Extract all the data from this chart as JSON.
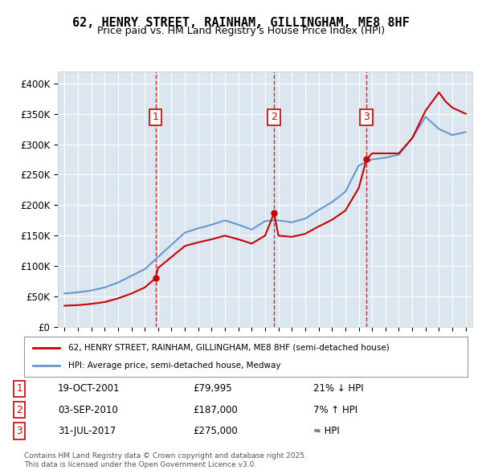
{
  "title": "62, HENRY STREET, RAINHAM, GILLINGHAM, ME8 8HF",
  "subtitle": "Price paid vs. HM Land Registry's House Price Index (HPI)",
  "bg_color": "#dce6f0",
  "plot_bg": "#dce6f0",
  "fig_bg": "#ffffff",
  "red_color": "#cc0000",
  "blue_color": "#6699cc",
  "sale_marker_color": "#cc0000",
  "ylabel_color": "#000000",
  "sales": [
    {
      "label": "1",
      "year": 2001.8,
      "price": 79995
    },
    {
      "label": "2",
      "year": 2010.67,
      "price": 187000
    },
    {
      "label": "3",
      "year": 2017.58,
      "price": 275000
    }
  ],
  "sale_table": [
    {
      "num": "1",
      "date": "19-OCT-2001",
      "price": "£79,995",
      "hpi": "21% ↓ HPI"
    },
    {
      "num": "2",
      "date": "03-SEP-2010",
      "price": "£187,000",
      "hpi": "7% ↑ HPI"
    },
    {
      "num": "3",
      "date": "31-JUL-2017",
      "price": "£275,000",
      "hpi": "≈ HPI"
    }
  ],
  "legend1": "62, HENRY STREET, RAINHAM, GILLINGHAM, ME8 8HF (semi-detached house)",
  "legend2": "HPI: Average price, semi-detached house, Medway",
  "footer": "Contains HM Land Registry data © Crown copyright and database right 2025.\nThis data is licensed under the Open Government Licence v3.0.",
  "ylim": [
    0,
    420000
  ],
  "yticks": [
    0,
    50000,
    100000,
    150000,
    200000,
    250000,
    300000,
    350000,
    400000
  ],
  "ytick_labels": [
    "£0",
    "£50K",
    "£100K",
    "£150K",
    "£200K",
    "£250K",
    "£300K",
    "£350K",
    "£400K"
  ]
}
